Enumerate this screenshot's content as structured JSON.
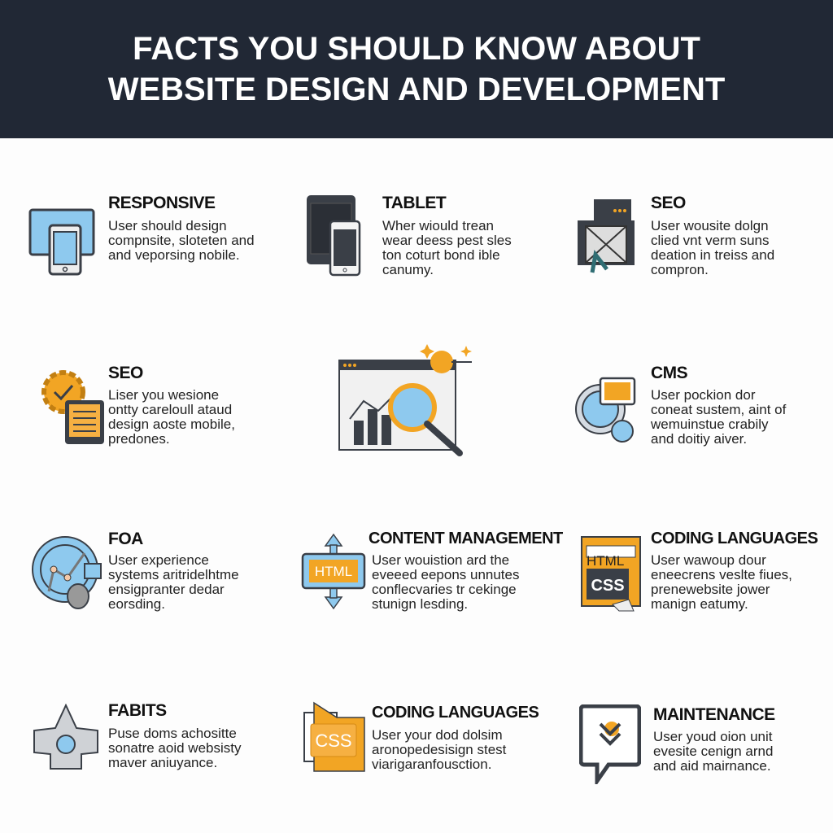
{
  "header": {
    "line1": "FACTS YOU SHOULD KNOW ABOUT",
    "line2": "WEBSITE DESIGN AND DEVELOPMENT"
  },
  "colors": {
    "header_bg": "#212835",
    "accent_orange": "#f2a524",
    "accent_blue": "#8ec9ee",
    "outline": "#3a3f47"
  },
  "cards": [
    {
      "icon": "responsive-devices-icon",
      "title": "RESPONSIVE",
      "lines": [
        "User should design",
        "compnsite, sloteten and",
        "and veporsing nobile."
      ]
    },
    {
      "icon": "tablet-icon",
      "title": "TABLET",
      "lines": [
        "Wher wiould trean",
        "wear deess pest sles",
        "ton coturt bond ible",
        "canumy."
      ]
    },
    {
      "icon": "seo-envelope-icon",
      "title": "SEO",
      "lines": [
        "User wousite dolgn",
        "clied vnt verm suns",
        "deation in treiss and",
        "compron."
      ]
    },
    {
      "icon": "gear-tablet-icon",
      "title": "SEO",
      "lines": [
        "Liser you wesione",
        "ontty careloull ataud",
        "design aoste mobile,",
        "predones."
      ]
    },
    {
      "icon": "analytics-magnifier-icon",
      "title": "",
      "lines": []
    },
    {
      "icon": "cms-globe-icon",
      "title": "CMS",
      "lines": [
        "User pockion dor",
        "coneat sustem, aint of",
        "wemuinstue crabily",
        "and doitiy aiver."
      ]
    },
    {
      "icon": "ux-chart-circle-icon",
      "title": "FOA",
      "lines": [
        "User experience",
        "systems aritridelhtme",
        "ensigpranter dedar",
        "eorsding."
      ]
    },
    {
      "icon": "html-arrows-icon",
      "title": "CONTENT MANAGEMENT",
      "lines": [
        "User wouistion ard the",
        "eveeed eepons unnutes",
        "conflecvaries tr cekinge",
        "stunign lesding."
      ]
    },
    {
      "icon": "html-css-document-icon",
      "title": "CODING LANGUAGES",
      "lines": [
        "User wawoup dour",
        "eneecrens veslte fiues,",
        "prenewebsite jower",
        "manign eatumy."
      ]
    },
    {
      "icon": "habits-shape-icon",
      "title": "FABITS",
      "lines": [
        "Puse doms achositte",
        "sonatre aoid websisty",
        "maver aniuyance."
      ]
    },
    {
      "icon": "css-folder-icon",
      "title": "CODING LANGUAGES",
      "lines": [
        "User your dod dolsim",
        "aronopedesisign stest",
        "viarigaranfousction."
      ]
    },
    {
      "icon": "maintenance-chat-icon",
      "title": "MAINTENANCE",
      "lines": [
        "User youd oion unit",
        "evesite cenign arnd",
        "and aid mairnance."
      ]
    }
  ],
  "icon_labels": {
    "html": "HTML",
    "css": "CSS"
  }
}
